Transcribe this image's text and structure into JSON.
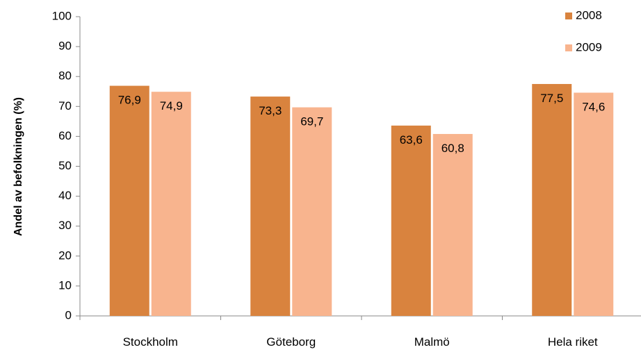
{
  "chart_data": {
    "type": "bar",
    "categories": [
      "Stockholm",
      "Göteborg",
      "Malmö",
      "Hela riket"
    ],
    "series": [
      {
        "name": "2008",
        "values": [
          76.9,
          73.3,
          63.6,
          77.5
        ],
        "labels": [
          "76,9",
          "73,3",
          "63,6",
          "77,5"
        ],
        "color": "#d9833e"
      },
      {
        "name": "2009",
        "values": [
          74.9,
          69.7,
          60.8,
          74.6
        ],
        "labels": [
          "74,9",
          "69,7",
          "60,8",
          "74,6"
        ],
        "color": "#f8b48e"
      }
    ],
    "ylabel": "Andel av befolkningen (%)",
    "ylim": [
      0,
      100
    ],
    "yticks": [
      0,
      10,
      20,
      30,
      40,
      50,
      60,
      70,
      80,
      90,
      100
    ],
    "grid": false,
    "legend_position": "top-right"
  }
}
